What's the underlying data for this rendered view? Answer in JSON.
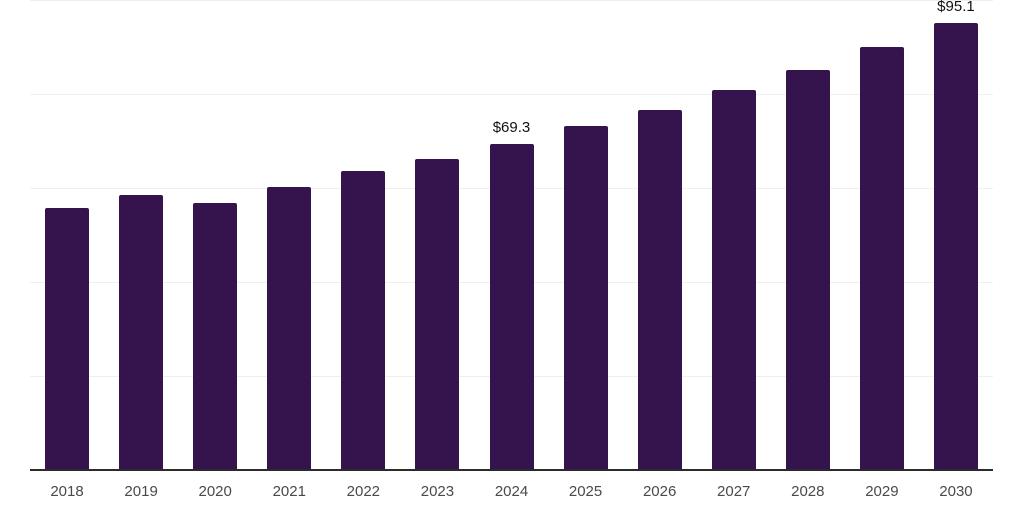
{
  "page": {
    "background": "#ffffff"
  },
  "chart_data": {
    "type": "bar",
    "title": "",
    "xlabel": "",
    "ylabel": "",
    "categories": [
      "2018",
      "2019",
      "2020",
      "2021",
      "2022",
      "2023",
      "2024",
      "2025",
      "2026",
      "2027",
      "2028",
      "2029",
      "2030"
    ],
    "values": [
      55.7,
      58.5,
      56.8,
      60.2,
      63.6,
      66.2,
      69.3,
      73.2,
      76.6,
      80.8,
      85.1,
      90.0,
      95.1
    ],
    "data_labels": {
      "2024": "$69.3",
      "2030": "$95.1"
    },
    "ylim": [
      0,
      100
    ],
    "gridline_step": 20,
    "grid": true,
    "y_tick_labels_visible": false,
    "legend_position": "none",
    "colors": {
      "bar": "#35134D",
      "gridline": "#EFEFEF",
      "axis_line": "#2B2B2B",
      "tick_label": "#4A4A4A",
      "data_label": "#111111"
    }
  }
}
